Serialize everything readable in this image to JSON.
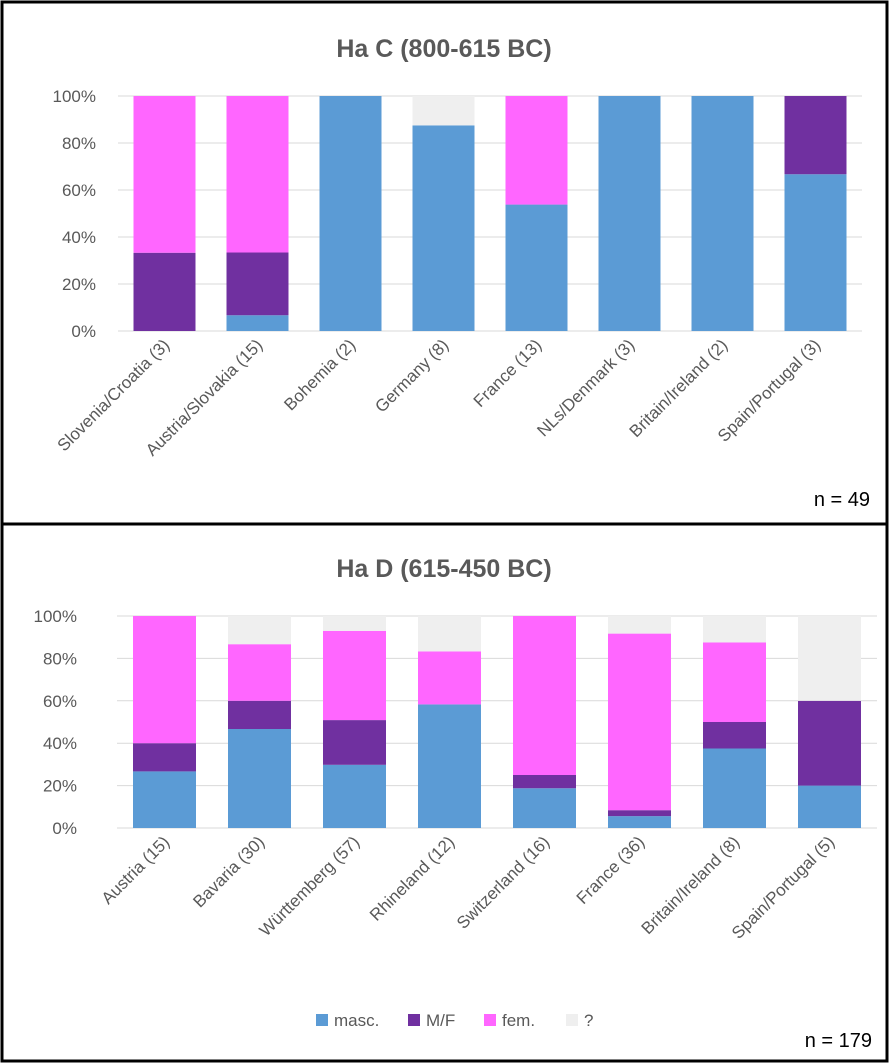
{
  "colors": {
    "masc": "#5b9bd5",
    "mf": "#7030a0",
    "fem": "#ff66ff",
    "unknown": "#efefef",
    "text": "#595959",
    "grid": "#d9d9d9"
  },
  "legend": [
    "masc.",
    "M/F",
    "fem.",
    "?"
  ],
  "chart_data": [
    {
      "type": "bar",
      "stacked": true,
      "title": "Ha C (800-615 BC)",
      "n_label": "n = 49",
      "ylim": [
        0,
        100
      ],
      "yticks": [
        "0%",
        "20%",
        "40%",
        "60%",
        "80%",
        "100%"
      ],
      "categories": [
        "Slovenia/Croatia (3)",
        "Austria/Slovakia (15)",
        "Bohemia (2)",
        "Germany (8)",
        "France (13)",
        "NLs/Denmark (3)",
        "Britain/Ireland (2)",
        "Spain/Portugal (3)"
      ],
      "series": [
        {
          "name": "masc.",
          "values": [
            0,
            6.7,
            100,
            87.5,
            53.8,
            100,
            100,
            66.7
          ]
        },
        {
          "name": "M/F",
          "values": [
            33.3,
            26.7,
            0,
            0,
            0,
            0,
            0,
            33.3
          ]
        },
        {
          "name": "fem.",
          "values": [
            66.7,
            66.6,
            0,
            0,
            46.2,
            0,
            0,
            0
          ]
        },
        {
          "name": "?",
          "values": [
            0,
            0,
            0,
            12.5,
            0,
            0,
            0,
            0
          ]
        }
      ]
    },
    {
      "type": "bar",
      "stacked": true,
      "title": "Ha D (615-450 BC)",
      "n_label": "n = 179",
      "ylim": [
        0,
        100
      ],
      "yticks": [
        "0%",
        "20%",
        "40%",
        "60%",
        "80%",
        "100%"
      ],
      "categories": [
        "Austria (15)",
        "Bavaria (30)",
        "Württemberg (57)",
        "Rhineland (12)",
        "Switzerland (16)",
        "France (36)",
        "Britain/Ireland (8)",
        "Spain/Portugal (5)"
      ],
      "legend_position": "bottom",
      "series": [
        {
          "name": "masc.",
          "values": [
            26.7,
            46.7,
            29.8,
            58.3,
            18.75,
            5.6,
            37.5,
            20
          ]
        },
        {
          "name": "M/F",
          "values": [
            13.3,
            13.3,
            21.1,
            0,
            6.25,
            2.8,
            12.5,
            40
          ]
        },
        {
          "name": "fem.",
          "values": [
            60,
            26.7,
            42.1,
            25,
            75,
            83.3,
            37.5,
            0
          ]
        },
        {
          "name": "?",
          "values": [
            0,
            13.3,
            7.0,
            16.7,
            0,
            8.3,
            12.5,
            40
          ]
        }
      ]
    }
  ]
}
